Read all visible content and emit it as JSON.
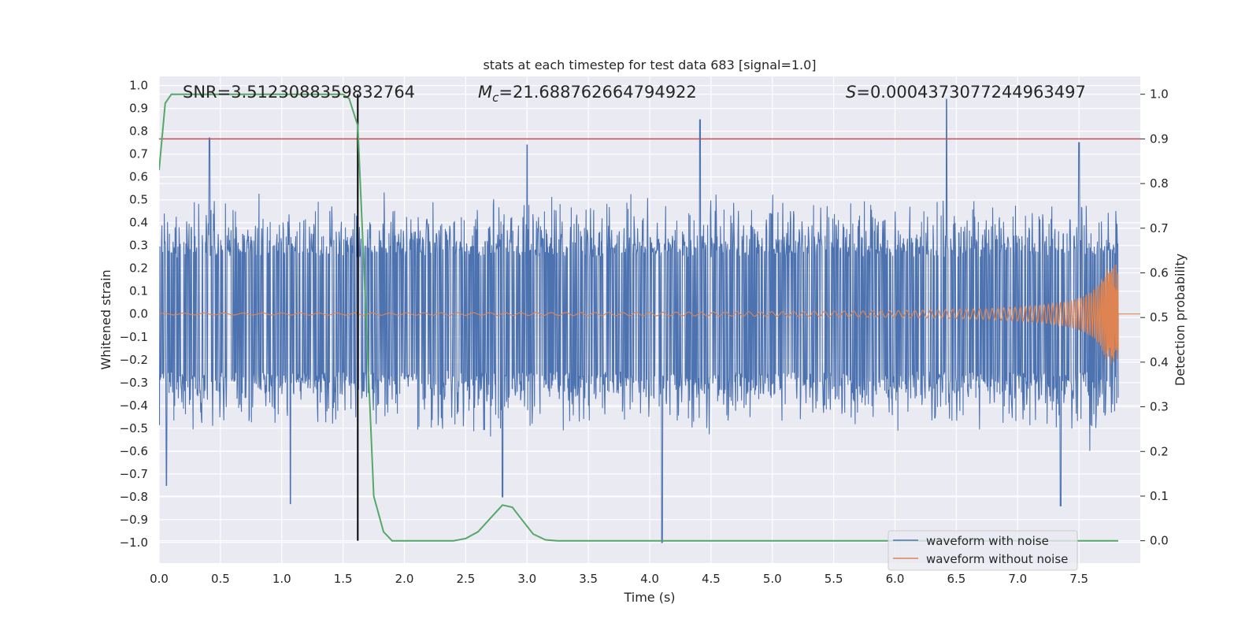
{
  "chart_data": {
    "type": "line",
    "title": "stats at each timestep for test data 683 [signal=1.0]",
    "xlabel": "Time (s)",
    "ylabel": "Whitened strain",
    "y2label": "Detection probability",
    "xlim": [
      0.0,
      8.0
    ],
    "ylim": [
      -1.09,
      1.04
    ],
    "y2lim": [
      -0.05,
      1.04
    ],
    "xticks": [
      "0.0",
      "0.5",
      "1.0",
      "1.5",
      "2.0",
      "2.5",
      "3.0",
      "3.5",
      "4.0",
      "4.5",
      "5.0",
      "5.5",
      "6.0",
      "6.5",
      "7.0",
      "7.5"
    ],
    "yticks": [
      "1.0",
      "0.9",
      "0.8",
      "0.7",
      "0.6",
      "0.5",
      "0.4",
      "0.3",
      "0.2",
      "0.1",
      "0.0",
      "-0.1",
      "-0.2",
      "-0.3",
      "-0.4",
      "-0.5",
      "-0.6",
      "-0.7",
      "-0.8",
      "-0.9",
      "-1.0"
    ],
    "y2ticks": [
      "1.0",
      "0.9",
      "0.8",
      "0.7",
      "0.6",
      "0.5",
      "0.4",
      "0.3",
      "0.2",
      "0.1",
      "0.0"
    ],
    "annotations": {
      "snr": "SNR=3.5123088359832764",
      "mc_symbol": "M",
      "mc_sub": "c",
      "mc_value": "=21.688762664794922",
      "s_symbol": "S",
      "s_value": "=0.0004373077244963497"
    },
    "threshold": 0.9,
    "marker_time": 1.62,
    "noise_envelope": {
      "typical_upper": 0.45,
      "typical_lower": -0.45,
      "peaks": [
        {
          "t": 0.41,
          "v": 0.77
        },
        {
          "t": 3.0,
          "v": 0.74
        },
        {
          "t": 4.41,
          "v": 0.85
        },
        {
          "t": 6.42,
          "v": 0.94
        },
        {
          "t": 7.5,
          "v": 0.75
        },
        {
          "t": 0.06,
          "v": -0.75
        },
        {
          "t": 1.07,
          "v": -0.83
        },
        {
          "t": 2.8,
          "v": -0.8
        },
        {
          "t": 4.1,
          "v": -1.0
        },
        {
          "t": 7.35,
          "v": -0.84
        }
      ]
    },
    "chirp": {
      "start_t": 0.0,
      "end_t": 7.82,
      "peak_amplitude": 0.22
    },
    "detection_probability": {
      "t": [
        0.0,
        0.05,
        0.1,
        0.2,
        0.5,
        1.0,
        1.5,
        1.55,
        1.62,
        1.68,
        1.75,
        1.83,
        1.9,
        2.0,
        2.2,
        2.4,
        2.5,
        2.6,
        2.7,
        2.8,
        2.88,
        2.95,
        3.05,
        3.15,
        3.25,
        4.0,
        5.0,
        6.0,
        7.0,
        7.82
      ],
      "values": [
        0.83,
        0.98,
        1.0,
        1.0,
        1.0,
        1.0,
        1.0,
        0.99,
        0.93,
        0.55,
        0.1,
        0.02,
        0.0,
        0.0,
        0.0,
        0.0,
        0.005,
        0.02,
        0.05,
        0.08,
        0.075,
        0.05,
        0.015,
        0.002,
        0.0,
        0.0,
        0.0,
        0.0,
        0.0,
        0.0
      ]
    },
    "legend": [
      {
        "label": "waveform with noise",
        "color": "#4c72b0"
      },
      {
        "label": "waveform without noise",
        "color": "#dd8452"
      }
    ],
    "colors": {
      "noise": "#4c72b0",
      "clean": "#dd8452",
      "probability": "#55a868",
      "threshold": "#c44e52",
      "marker": "#000000",
      "plot_bg": "#eaeaf2",
      "grid": "#ffffff"
    },
    "legend_position": "lower-right",
    "grid": true
  }
}
